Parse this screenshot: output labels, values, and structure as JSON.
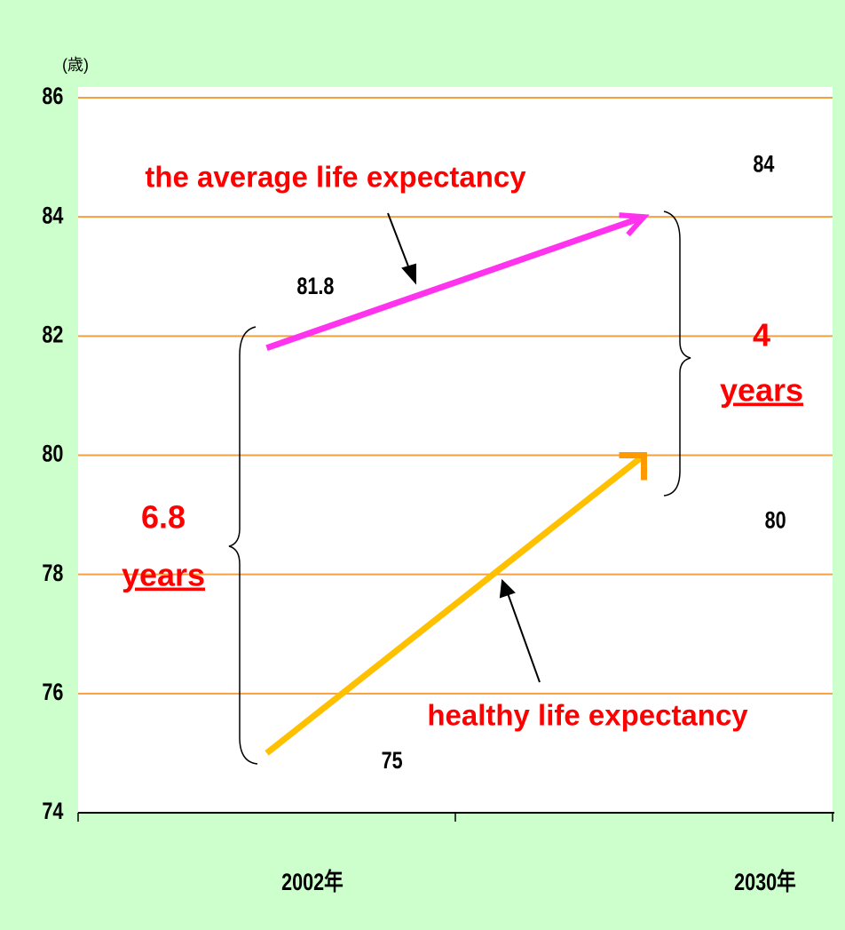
{
  "chart_data": {
    "type": "line",
    "y_label": "(歳)",
    "categories": [
      "2002年",
      "2030年"
    ],
    "series": [
      {
        "name": "the average life expectancy",
        "color": "#ff33ee",
        "values": [
          81.8,
          84
        ]
      },
      {
        "name": "healthy life expectancy",
        "color": "#ffc000",
        "values": [
          75,
          80
        ]
      }
    ],
    "ylim": [
      74,
      86
    ],
    "yticks": [
      74,
      76,
      78,
      80,
      82,
      84,
      86
    ],
    "grid": true,
    "grid_color": "#f5a040",
    "annotations": [
      "6.8",
      "years",
      "4",
      "years"
    ]
  }
}
